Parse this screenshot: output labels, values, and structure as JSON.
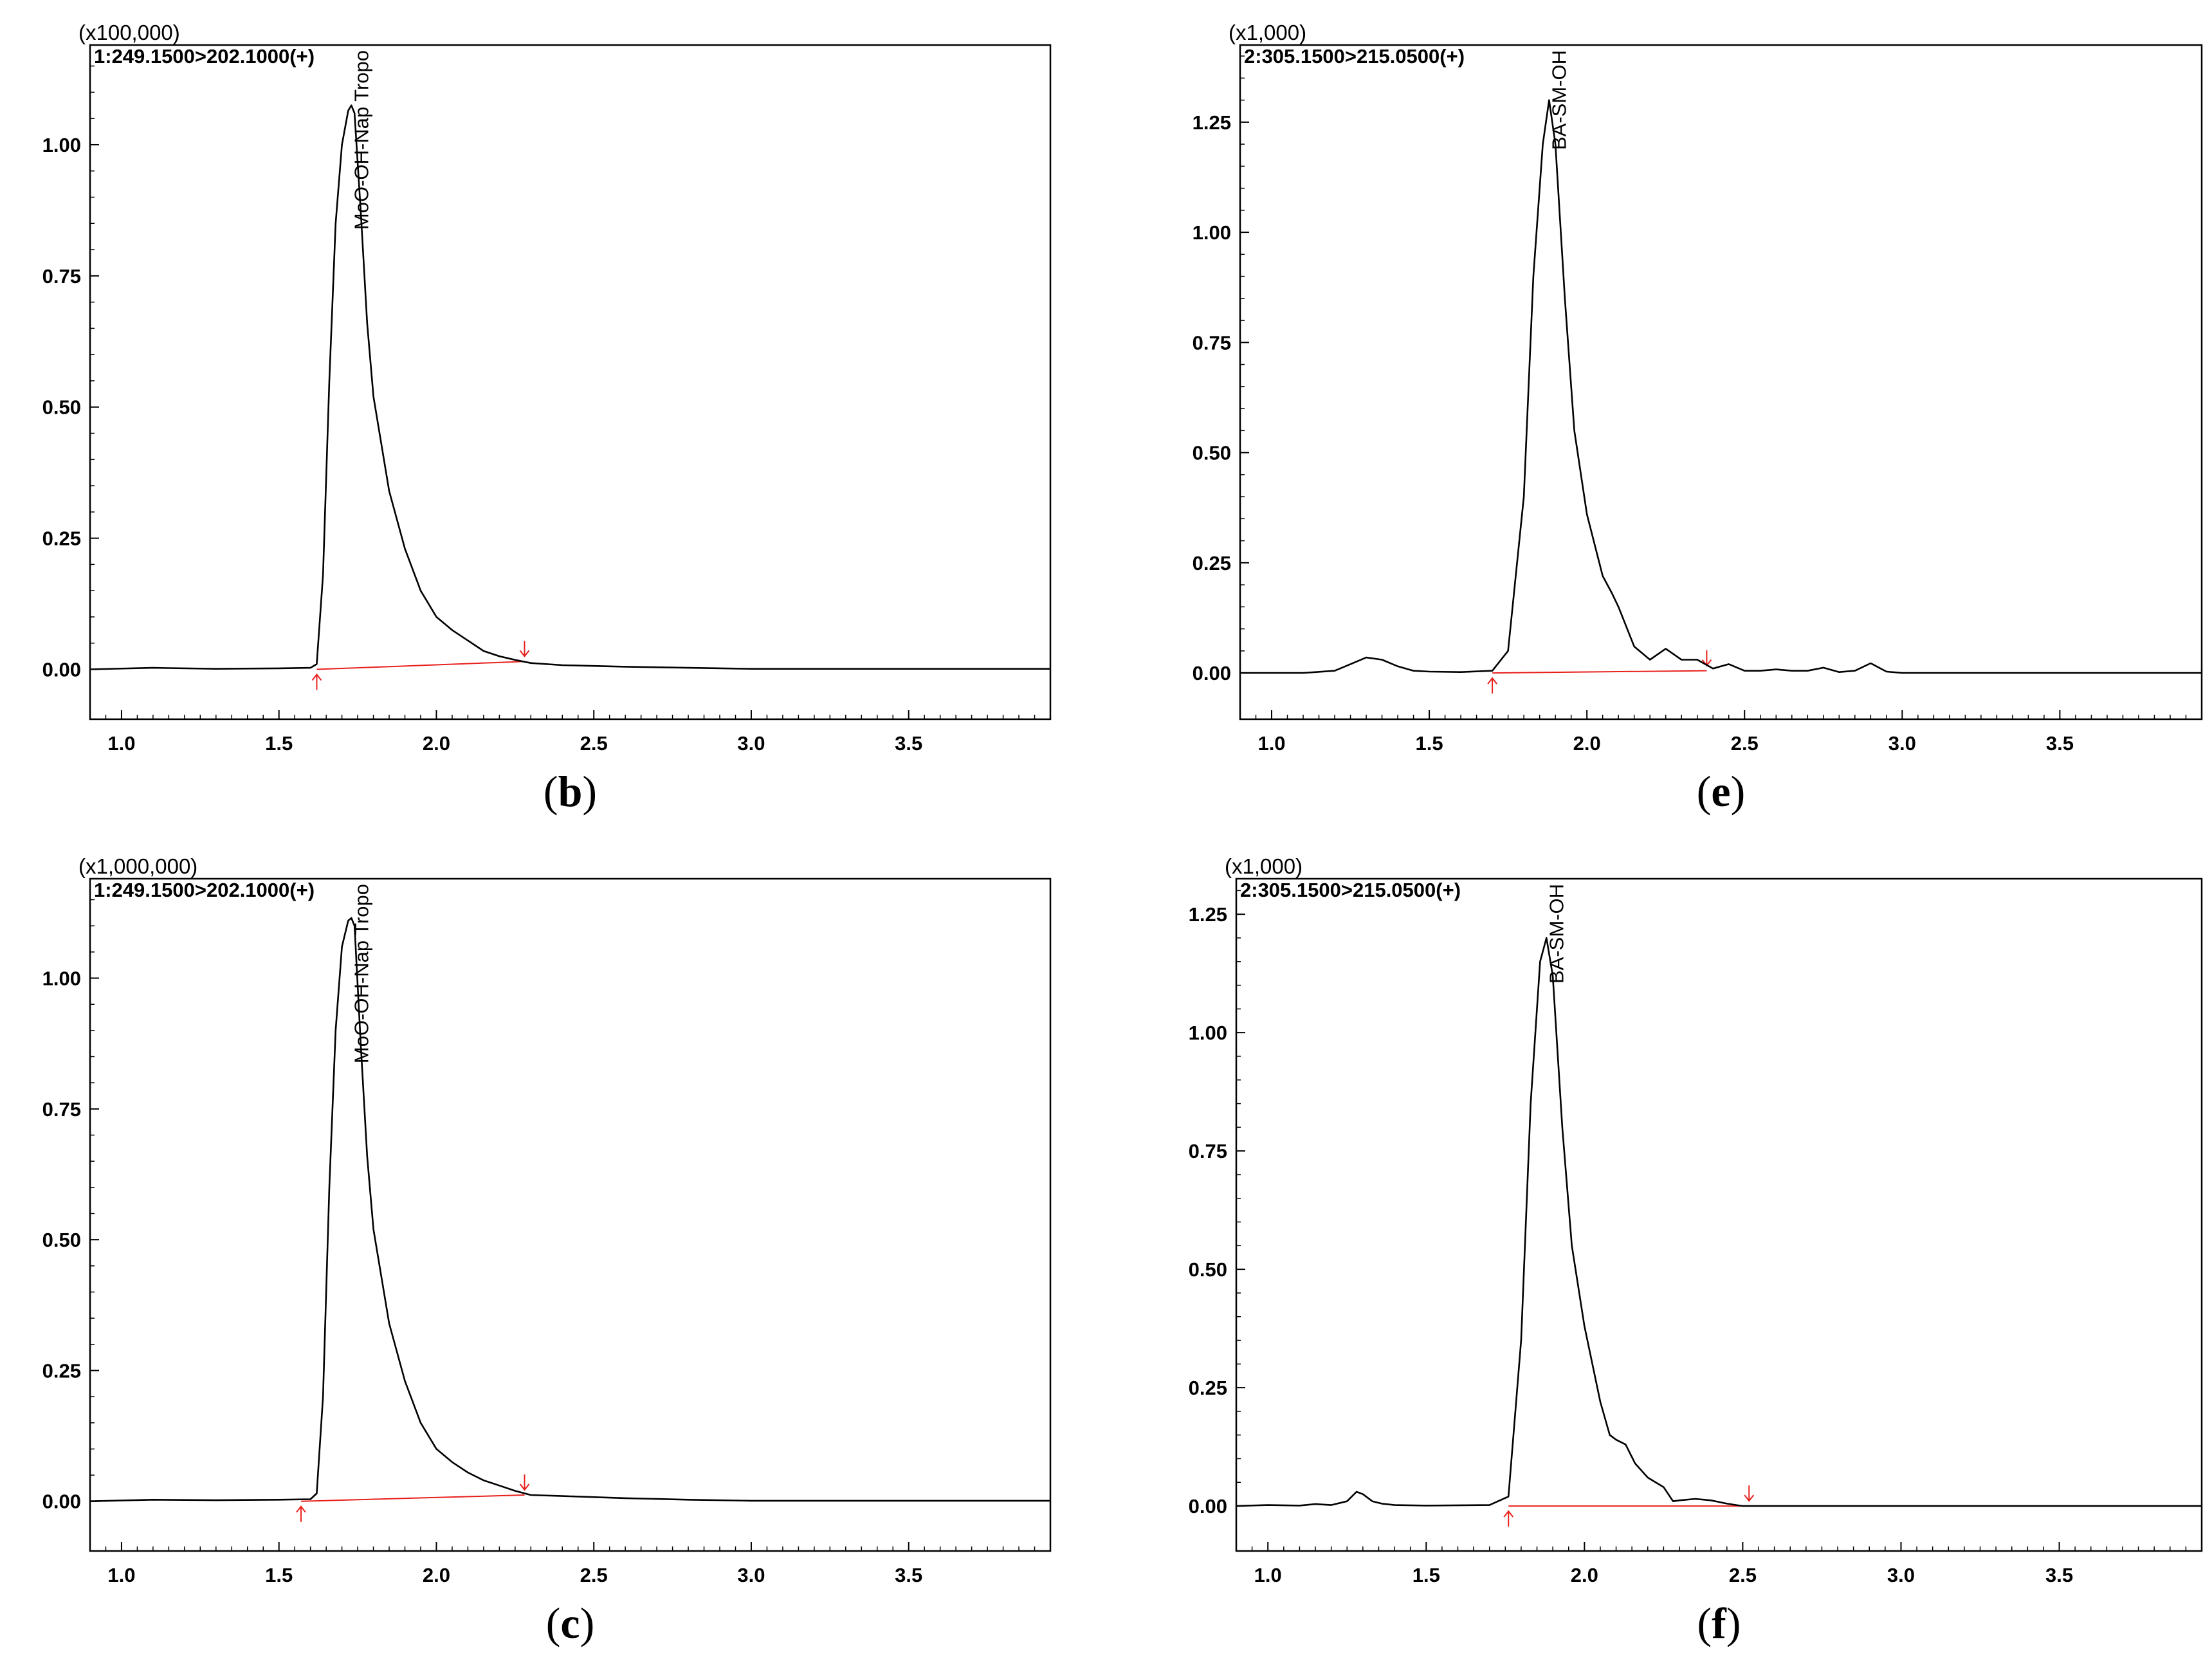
{
  "chart_data": [
    {
      "id": "b",
      "type": "line",
      "panel_label": "b",
      "scale_label": "(x100,000)",
      "channel_label": "1:249.1500>202.1000(+)",
      "peak_name": "MoO-OH-Nap Tropo",
      "xlim": [
        0.9,
        3.95
      ],
      "ylim": [
        -0.095,
        1.19
      ],
      "x_ticks": [
        "1.0",
        "1.5",
        "2.0",
        "2.5",
        "3.0",
        "3.5"
      ],
      "y_ticks": [
        "0.00",
        "0.25",
        "0.50",
        "0.75",
        "1.00"
      ],
      "series": [
        {
          "name": "MoO-OH-Nap Tropo",
          "x": [
            0.9,
            1.1,
            1.3,
            1.5,
            1.6,
            1.62,
            1.64,
            1.66,
            1.68,
            1.7,
            1.72,
            1.73,
            1.74,
            1.76,
            1.78,
            1.8,
            1.85,
            1.9,
            1.95,
            2.0,
            2.05,
            2.1,
            2.15,
            2.2,
            2.25,
            2.3,
            2.4,
            2.6,
            2.8,
            3.0,
            3.5,
            3.95
          ],
          "y": [
            0.0,
            0.003,
            0.001,
            0.002,
            0.003,
            0.01,
            0.18,
            0.55,
            0.85,
            1.0,
            1.065,
            1.075,
            1.06,
            0.87,
            0.66,
            0.52,
            0.34,
            0.23,
            0.15,
            0.1,
            0.075,
            0.055,
            0.035,
            0.025,
            0.018,
            0.012,
            0.008,
            0.005,
            0.003,
            0.001,
            0.001,
            0.001
          ]
        }
      ],
      "baseline": {
        "x": [
          1.62,
          2.28
        ],
        "y": [
          0.0,
          0.015
        ]
      }
    },
    {
      "id": "e",
      "type": "line",
      "panel_label": "e",
      "scale_label": "(x1,000)",
      "channel_label": "2:305.1500>215.0500(+)",
      "peak_name": "BA-SM-OH",
      "xlim": [
        0.9,
        3.95
      ],
      "ylim": [
        -0.105,
        1.425
      ],
      "x_ticks": [
        "1.0",
        "1.5",
        "2.0",
        "2.5",
        "3.0",
        "3.5"
      ],
      "y_ticks": [
        "0.00",
        "0.25",
        "0.50",
        "0.75",
        "1.00",
        "1.25"
      ],
      "series": [
        {
          "name": "BA-SM-OH",
          "x": [
            0.9,
            1.1,
            1.2,
            1.25,
            1.3,
            1.35,
            1.4,
            1.45,
            1.5,
            1.6,
            1.7,
            1.75,
            1.8,
            1.83,
            1.86,
            1.88,
            1.9,
            1.93,
            1.96,
            2.0,
            2.05,
            2.08,
            2.1,
            2.15,
            2.2,
            2.25,
            2.3,
            2.35,
            2.4,
            2.45,
            2.5,
            2.55,
            2.6,
            2.65,
            2.7,
            2.75,
            2.8,
            2.85,
            2.9,
            2.95,
            3.0,
            3.5,
            3.95
          ],
          "y": [
            0.0,
            0.0,
            0.005,
            0.02,
            0.035,
            0.03,
            0.015,
            0.005,
            0.003,
            0.002,
            0.005,
            0.05,
            0.4,
            0.9,
            1.2,
            1.3,
            1.2,
            0.85,
            0.55,
            0.36,
            0.22,
            0.18,
            0.15,
            0.06,
            0.03,
            0.055,
            0.03,
            0.03,
            0.01,
            0.02,
            0.005,
            0.005,
            0.008,
            0.005,
            0.005,
            0.012,
            0.002,
            0.005,
            0.022,
            0.003,
            0.0,
            0.0,
            0.0
          ]
        }
      ],
      "baseline": {
        "x": [
          1.7,
          2.38
        ],
        "y": [
          0.0,
          0.005
        ]
      }
    },
    {
      "id": "c",
      "type": "line",
      "panel_label": "c",
      "scale_label": "(x1,000,000)",
      "channel_label": "1:249.1500>202.1000(+)",
      "peak_name": "MoO-OH-Nap Tropo",
      "xlim": [
        0.9,
        3.95
      ],
      "ylim": [
        -0.095,
        1.19
      ],
      "x_ticks": [
        "1.0",
        "1.5",
        "2.0",
        "2.5",
        "3.0",
        "3.5"
      ],
      "y_ticks": [
        "0.00",
        "0.25",
        "0.50",
        "0.75",
        "1.00"
      ],
      "series": [
        {
          "name": "MoO-OH-Nap Tropo",
          "x": [
            0.9,
            1.1,
            1.3,
            1.5,
            1.6,
            1.62,
            1.64,
            1.66,
            1.68,
            1.7,
            1.72,
            1.73,
            1.74,
            1.76,
            1.78,
            1.8,
            1.85,
            1.9,
            1.95,
            2.0,
            2.05,
            2.1,
            2.15,
            2.2,
            2.25,
            2.3,
            2.4,
            2.6,
            2.8,
            3.0,
            3.5,
            3.95
          ],
          "y": [
            0.0,
            0.003,
            0.002,
            0.003,
            0.004,
            0.015,
            0.2,
            0.6,
            0.9,
            1.06,
            1.11,
            1.115,
            1.1,
            0.87,
            0.66,
            0.52,
            0.34,
            0.23,
            0.15,
            0.1,
            0.075,
            0.055,
            0.04,
            0.03,
            0.02,
            0.012,
            0.01,
            0.006,
            0.003,
            0.001,
            0.001,
            0.001
          ]
        }
      ],
      "baseline": {
        "x": [
          1.57,
          2.28
        ],
        "y": [
          0.0,
          0.012
        ]
      }
    },
    {
      "id": "f",
      "type": "line",
      "panel_label": "f",
      "scale_label": "(x1,000)",
      "channel_label": "2:305.1500>215.0500(+)",
      "peak_name": "BA-SM-OH",
      "xlim": [
        0.9,
        3.95
      ],
      "ylim": [
        -0.095,
        1.325
      ],
      "x_ticks": [
        "1.0",
        "1.5",
        "2.0",
        "2.5",
        "3.0",
        "3.5"
      ],
      "y_ticks": [
        "0.00",
        "0.25",
        "0.50",
        "0.75",
        "1.00",
        "1.25"
      ],
      "series": [
        {
          "name": "BA-SM-OH",
          "x": [
            0.9,
            1.0,
            1.1,
            1.15,
            1.2,
            1.25,
            1.28,
            1.3,
            1.33,
            1.36,
            1.4,
            1.5,
            1.7,
            1.76,
            1.8,
            1.83,
            1.86,
            1.88,
            1.9,
            1.93,
            1.96,
            2.0,
            2.05,
            2.08,
            2.1,
            2.13,
            2.16,
            2.2,
            2.25,
            2.28,
            2.3,
            2.35,
            2.4,
            2.45,
            2.5,
            3.0,
            3.5,
            3.95
          ],
          "y": [
            0.0,
            0.002,
            0.001,
            0.004,
            0.002,
            0.01,
            0.03,
            0.025,
            0.01,
            0.005,
            0.002,
            0.001,
            0.002,
            0.02,
            0.35,
            0.85,
            1.15,
            1.2,
            1.12,
            0.8,
            0.55,
            0.38,
            0.22,
            0.15,
            0.14,
            0.13,
            0.09,
            0.06,
            0.04,
            0.01,
            0.012,
            0.015,
            0.012,
            0.005,
            0.0,
            0.0,
            0.0,
            0.0
          ]
        }
      ],
      "baseline": {
        "x": [
          1.76,
          2.52
        ],
        "y": [
          0.0,
          0.0
        ]
      }
    }
  ],
  "colors": {
    "trace": "#000000",
    "baseline": "#e8201c",
    "frame": "#000000",
    "background": "#ffffff"
  }
}
